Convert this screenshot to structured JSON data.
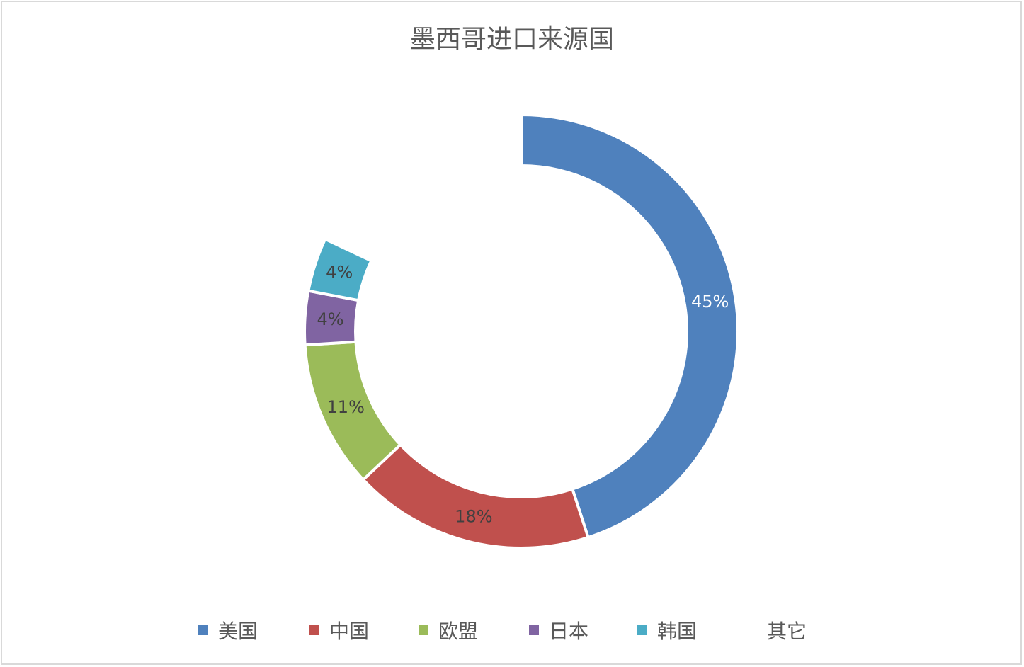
{
  "chart_data": {
    "type": "donut",
    "title": "墨西哥进口来源国",
    "categories": [
      "美国",
      "中国",
      "欧盟",
      "日本",
      "韩国",
      "其它"
    ],
    "values": [
      45,
      18,
      11,
      4,
      4,
      18
    ],
    "labels": [
      "45%",
      "18%",
      "11%",
      "4%",
      "4%",
      ""
    ],
    "colors": [
      "#4f81bd",
      "#c0504d",
      "#9bbb59",
      "#8064a2",
      "#4bacc6",
      "none"
    ],
    "label_colors": [
      "#ffffff",
      "#404040",
      "#404040",
      "#404040",
      "#404040",
      "#404040"
    ],
    "legend_position": "bottom",
    "unit": "%"
  }
}
